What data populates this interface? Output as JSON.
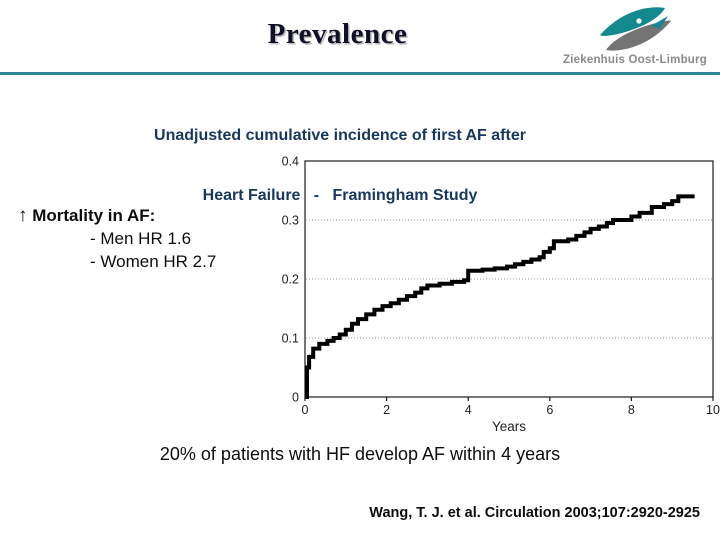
{
  "slide": {
    "title": "Prevalence",
    "logo": {
      "name": "Ziekenhuis Oost-Limburg"
    },
    "subtitle": {
      "line1": "Unadjusted cumulative incidence of first AF after",
      "line2": "Heart Failure   -   Framingham Study"
    },
    "mortality": {
      "arrow": "↑",
      "heading": "Mortality in AF:",
      "items": [
        "- Men HR 1.6",
        "- Women HR 2.7"
      ]
    },
    "conclusion": "20% of patients with HF develop AF within 4 years",
    "citation": "Wang, T. J. et al. Circulation 2003;107:2920-2925",
    "colors": {
      "accent_teal": "#2a8794",
      "subtitle_navy": "#17375e",
      "logo_teal": "#13898e",
      "logo_gray": "#747474",
      "curve_black": "#000000",
      "grid_gray": "#9a9a9a",
      "axis_black": "#1a1a1a",
      "tick_text": "#1f1f1f"
    }
  },
  "chart_data": {
    "type": "line",
    "subtype": "step",
    "series_label": "Unadjusted cumulative incidence of first AF after heart failure (Framingham Study)",
    "title": "",
    "xlabel": "Years",
    "ylabel": "",
    "xlim": [
      0,
      10
    ],
    "ylim": [
      0,
      0.4
    ],
    "xticks": [
      0,
      2,
      4,
      6,
      8,
      10
    ],
    "yticks": [
      0,
      0.1,
      0.2,
      0.3,
      0.4
    ],
    "grid": "horizontal dotted gridlines at 0.1, 0.2, 0.3",
    "legend_position": "none",
    "points": [
      [
        0,
        0
      ],
      [
        0.05,
        0.05
      ],
      [
        0.1,
        0.068
      ],
      [
        0.2,
        0.082
      ],
      [
        0.35,
        0.09
      ],
      [
        0.55,
        0.095
      ],
      [
        0.7,
        0.1
      ],
      [
        0.85,
        0.106
      ],
      [
        1.0,
        0.114
      ],
      [
        1.15,
        0.124
      ],
      [
        1.3,
        0.132
      ],
      [
        1.5,
        0.14
      ],
      [
        1.7,
        0.148
      ],
      [
        1.9,
        0.154
      ],
      [
        2.1,
        0.159
      ],
      [
        2.3,
        0.165
      ],
      [
        2.5,
        0.171
      ],
      [
        2.7,
        0.177
      ],
      [
        2.85,
        0.184
      ],
      [
        3.0,
        0.189
      ],
      [
        3.3,
        0.192
      ],
      [
        3.6,
        0.195
      ],
      [
        3.9,
        0.198
      ],
      [
        4.0,
        0.214
      ],
      [
        4.35,
        0.216
      ],
      [
        4.65,
        0.218
      ],
      [
        4.95,
        0.221
      ],
      [
        5.15,
        0.225
      ],
      [
        5.35,
        0.229
      ],
      [
        5.55,
        0.233
      ],
      [
        5.75,
        0.237
      ],
      [
        5.85,
        0.246
      ],
      [
        6.0,
        0.252
      ],
      [
        6.1,
        0.264
      ],
      [
        6.45,
        0.267
      ],
      [
        6.65,
        0.273
      ],
      [
        6.85,
        0.279
      ],
      [
        7.0,
        0.285
      ],
      [
        7.2,
        0.289
      ],
      [
        7.4,
        0.295
      ],
      [
        7.55,
        0.3
      ],
      [
        8.0,
        0.306
      ],
      [
        8.2,
        0.312
      ],
      [
        8.5,
        0.322
      ],
      [
        8.8,
        0.327
      ],
      [
        9.0,
        0.332
      ],
      [
        9.15,
        0.34
      ],
      [
        9.55,
        0.34
      ]
    ]
  }
}
